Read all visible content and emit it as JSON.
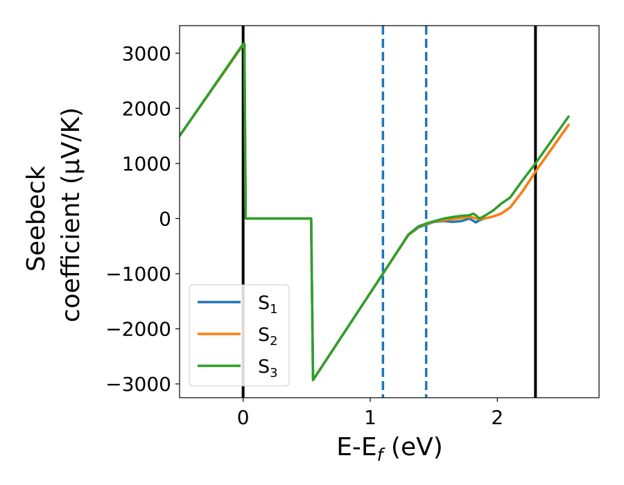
{
  "chart_data": {
    "type": "line",
    "xlabel": {
      "main": "E-E",
      "sub": "f",
      "unit": " (eV)"
    },
    "ylabel": {
      "line1": "Seebeck",
      "line2": "coefficient  (μV/K)"
    },
    "xlim": [
      -0.5,
      2.8
    ],
    "ylim": [
      -3250,
      3500
    ],
    "x_ticks": [
      0,
      1,
      2
    ],
    "y_ticks": [
      3000,
      2000,
      1000,
      0,
      -1000,
      -2000,
      -3000
    ],
    "y_tick_labels": [
      "3000",
      "2000",
      "1000",
      "0",
      "−1000",
      "−2000",
      "−3000"
    ],
    "vlines": [
      {
        "x": 0.0,
        "style": "solid",
        "color": "#000000"
      },
      {
        "x": 2.3,
        "style": "solid",
        "color": "#000000"
      },
      {
        "x": 1.1,
        "style": "dashed",
        "color": "#1f77b4"
      },
      {
        "x": 1.44,
        "style": "dashed",
        "color": "#1f77b4"
      }
    ],
    "legend_position": "lower-left",
    "series": [
      {
        "name": "S",
        "sub": "1",
        "color": "#1f77b4",
        "x": [
          -0.5,
          0.0,
          0.01,
          0.02,
          0.535,
          0.54,
          0.55,
          1.1,
          1.3,
          1.38,
          1.44,
          1.5,
          1.58,
          1.65,
          1.72,
          1.78,
          1.81,
          1.83,
          1.86,
          1.9,
          1.97,
          2.03,
          2.1,
          2.2,
          2.3,
          2.56
        ],
        "y": [
          1500,
          3150,
          3150,
          0,
          0,
          -1000,
          -2930,
          -1000,
          -300,
          -160,
          -110,
          -60,
          -45,
          -60,
          -45,
          0,
          -40,
          -70,
          -30,
          0,
          40,
          90,
          200,
          500,
          850,
          1700
        ]
      },
      {
        "name": "S",
        "sub": "2",
        "color": "#ff7f0e",
        "x": [
          -0.5,
          0.0,
          0.01,
          0.02,
          0.535,
          0.54,
          0.55,
          1.1,
          1.3,
          1.38,
          1.44,
          1.5,
          1.58,
          1.65,
          1.72,
          1.78,
          1.81,
          1.83,
          1.86,
          1.9,
          1.97,
          2.03,
          2.1,
          2.2,
          2.3,
          2.56
        ],
        "y": [
          1500,
          3150,
          3150,
          0,
          0,
          -1000,
          -2930,
          -1000,
          -300,
          -150,
          -100,
          -55,
          -30,
          -10,
          10,
          30,
          20,
          0,
          -10,
          0,
          40,
          90,
          200,
          500,
          850,
          1700
        ]
      },
      {
        "name": "S",
        "sub": "3",
        "color": "#2ca02c",
        "x": [
          -0.5,
          0.0,
          0.01,
          0.02,
          0.535,
          0.54,
          0.55,
          1.1,
          1.3,
          1.38,
          1.44,
          1.5,
          1.58,
          1.65,
          1.72,
          1.78,
          1.81,
          1.83,
          1.86,
          1.9,
          1.97,
          2.03,
          2.1,
          2.2,
          2.3,
          2.56
        ],
        "y": [
          1500,
          3170,
          3170,
          0,
          0,
          -1000,
          -2930,
          -1000,
          -290,
          -140,
          -90,
          -50,
          0,
          30,
          50,
          60,
          90,
          60,
          0,
          50,
          150,
          270,
          380,
          700,
          1000,
          1850
        ]
      }
    ]
  }
}
